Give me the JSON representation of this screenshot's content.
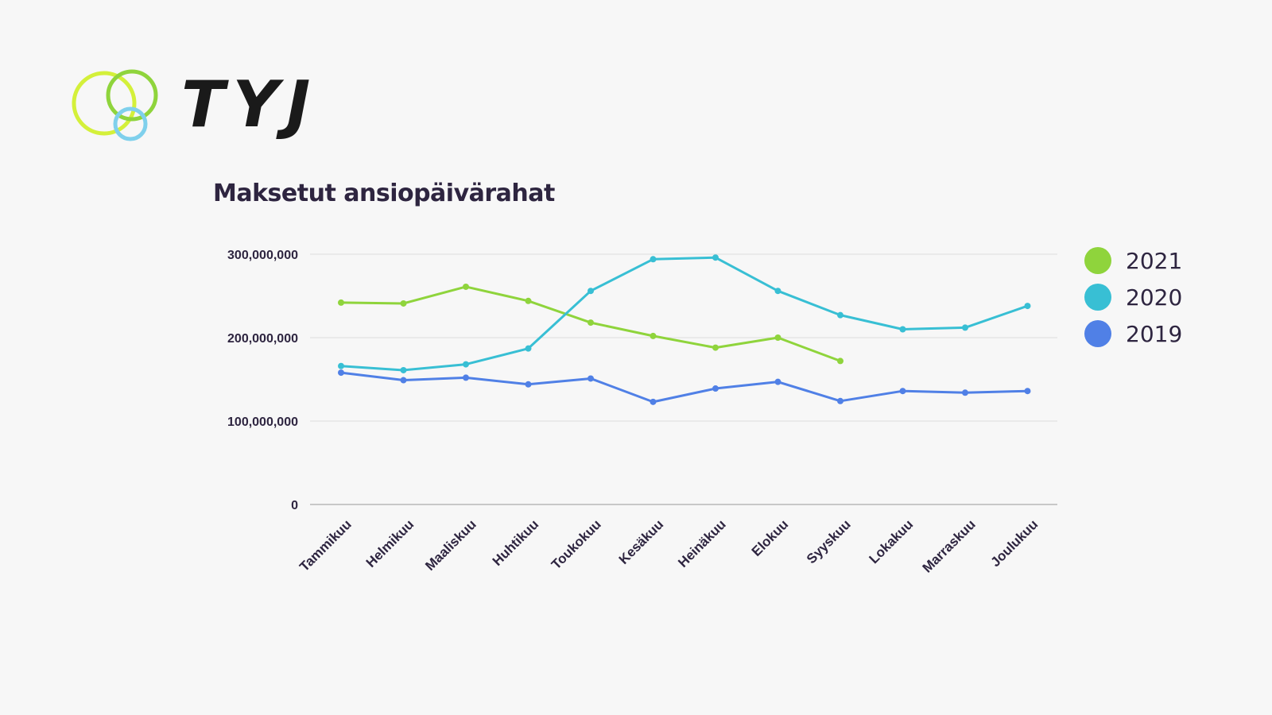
{
  "brand": {
    "name": "TYJ",
    "colors": {
      "ring_yellow": "#d4f03a",
      "ring_green": "#8fd43c",
      "ring_blue": "#7fd0ec"
    }
  },
  "chart_data": {
    "type": "line",
    "title": "Maksetut ansiopäivärahat",
    "xlabel": "",
    "ylabel": "",
    "categories": [
      "Tammikuu",
      "Helmikuu",
      "Maaliskuu",
      "Huhtikuu",
      "Toukokuu",
      "Kesäkuu",
      "Heinäkuu",
      "Elokuu",
      "Syyskuu",
      "Lokakuu",
      "Marraskuu",
      "Joulukuu"
    ],
    "ylim": [
      0,
      300000000
    ],
    "yticks": [
      0,
      100000000,
      200000000,
      300000000
    ],
    "ytick_labels": [
      "0",
      "100,000,000",
      "200,000,000",
      "300,000,000"
    ],
    "grid": true,
    "legend_position": "right",
    "series": [
      {
        "name": "2021",
        "color": "#8fd43c",
        "values": [
          242000000,
          241000000,
          261000000,
          244000000,
          218000000,
          202000000,
          188000000,
          200000000,
          172000000,
          null,
          null,
          null
        ]
      },
      {
        "name": "2020",
        "color": "#38bfd4",
        "values": [
          166000000,
          161000000,
          168000000,
          187000000,
          256000000,
          294000000,
          296000000,
          256000000,
          227000000,
          210000000,
          212000000,
          238000000
        ]
      },
      {
        "name": "2019",
        "color": "#5080e6",
        "values": [
          158000000,
          149000000,
          152000000,
          144000000,
          151000000,
          123000000,
          139000000,
          147000000,
          124000000,
          136000000,
          134000000,
          136000000
        ]
      }
    ]
  }
}
